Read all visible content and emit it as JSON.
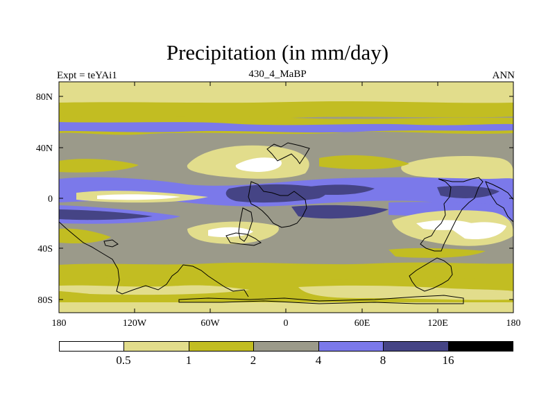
{
  "title": "Precipitation (in mm/day)",
  "subtitle_left": "Expt = teYAi1",
  "subtitle_center": "430_4_MaBP",
  "subtitle_right": "ANN",
  "x_ticks": [
    "180",
    "120W",
    "60W",
    "0",
    "60E",
    "120E",
    "180"
  ],
  "y_ticks": [
    "80N",
    "40N",
    "0",
    "40S",
    "80S"
  ],
  "colorbar": {
    "colors": [
      "#ffffff",
      "#e2dd8c",
      "#c2bd22",
      "#9b9a8a",
      "#7b79ea",
      "#454485",
      "#000000"
    ],
    "labels": [
      "0.5",
      "1",
      "2",
      "4",
      "8",
      "16"
    ]
  },
  "palette": {
    "white": "#ffffff",
    "pale": "#e2dd8c",
    "olive": "#c2bd22",
    "grey": "#9b9a8a",
    "blue": "#7b79ea",
    "navy": "#454485",
    "black": "#000000"
  }
}
